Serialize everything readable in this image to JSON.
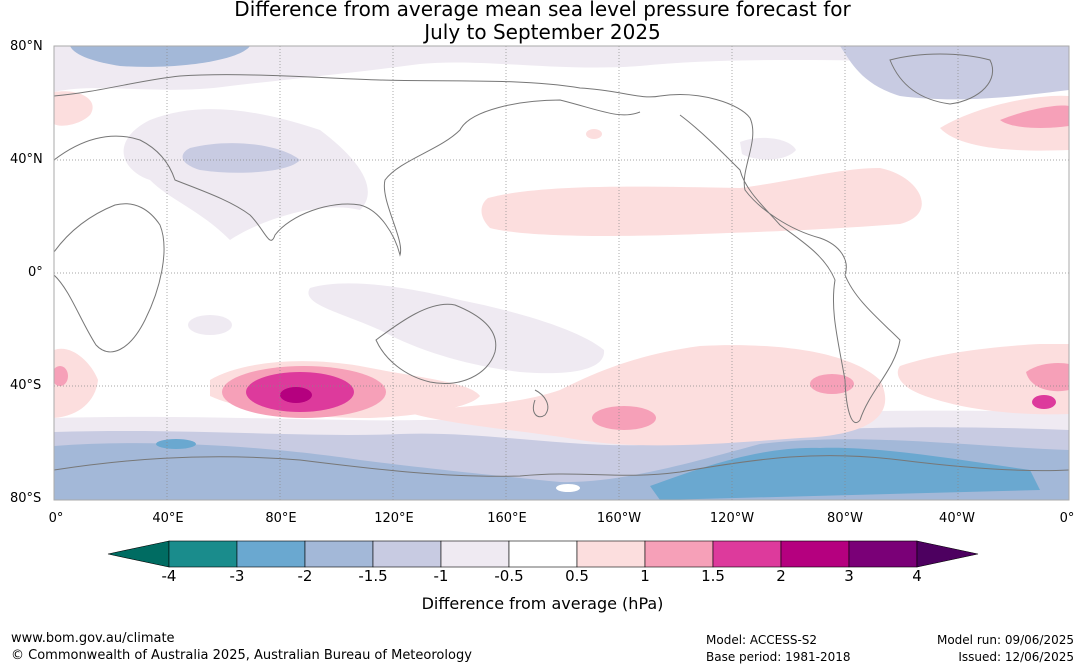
{
  "title": {
    "line1": "Difference from average mean sea level pressure forecast for",
    "line2": "July to September 2025"
  },
  "map": {
    "lat_labels": [
      "80°N",
      "40°N",
      "0°",
      "40°S",
      "80°S"
    ],
    "lon_labels": [
      "0°",
      "40°E",
      "80°E",
      "120°E",
      "160°E",
      "160°W",
      "120°W",
      "80°W",
      "40°W",
      "0°"
    ],
    "projection": "equirectangular",
    "lon_range": [
      0,
      360
    ],
    "lat_range": [
      -80,
      80
    ],
    "gridlines": true,
    "anomaly_regions_hpa": [
      {
        "region": "Southern Indian Ocean",
        "range": [
          1.5,
          3
        ]
      },
      {
        "region": "South Pacific near 150°W",
        "range": [
          1,
          1.5
        ]
      },
      {
        "region": "South Atlantic near 30°W",
        "range": [
          1,
          1.5
        ]
      },
      {
        "region": "North Atlantic near 30°W",
        "range": [
          1,
          1.5
        ]
      },
      {
        "region": "North Pacific subtropics",
        "range": [
          0.5,
          1
        ]
      },
      {
        "region": "Southern Ocean / Antarctica",
        "range": [
          -3,
          -1.5
        ]
      },
      {
        "region": "Arctic and Siberia",
        "range": [
          -1.5,
          -0.5
        ]
      }
    ]
  },
  "colorbar": {
    "tick_labels": [
      "-4",
      "-3",
      "-2",
      "-1.5",
      "-1",
      "-0.5",
      "0.5",
      "1",
      "1.5",
      "2",
      "3",
      "4"
    ],
    "colors": [
      "#1a8c8c",
      "#6aa8d0",
      "#a3b8d8",
      "#c8cbe2",
      "#efeaf2",
      "#ffffff",
      "#fcdede",
      "#f6a0b8",
      "#dd3a9c",
      "#b5007f",
      "#7a0077"
    ],
    "low_extend_color": "#006c62",
    "high_extend_color": "#4d0060",
    "label": "Difference from average (hPa)"
  },
  "footer": {
    "website": "www.bom.gov.au/climate",
    "copyright": "© Commonwealth of Australia 2025, Australian Bureau of Meteorology",
    "model": "Model: ACCESS-S2",
    "base_period": "Base period: 1981-2018",
    "model_run": "Model run: 09/06/2025",
    "issued": "Issued: 12/06/2025"
  }
}
